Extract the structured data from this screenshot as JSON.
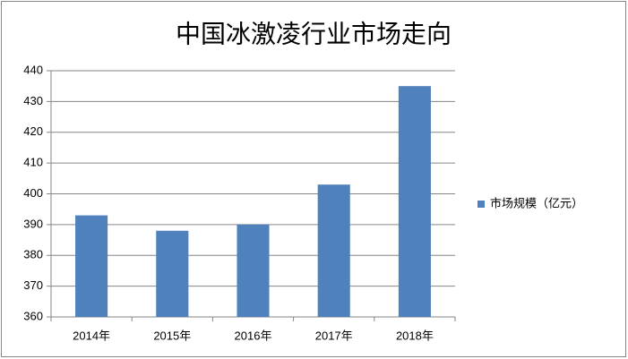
{
  "chart_data": {
    "type": "bar",
    "title": "中国冰激凌行业市场走向",
    "categories": [
      "2014年",
      "2015年",
      "2016年",
      "2017年",
      "2018年"
    ],
    "series": [
      {
        "name": "市场规模（亿元）",
        "color": "#4f81bd",
        "values": [
          393,
          388,
          390,
          403,
          435
        ]
      }
    ],
    "ylim": [
      360,
      440
    ],
    "yticks": [
      360,
      370,
      380,
      390,
      400,
      410,
      420,
      430,
      440
    ],
    "grid": true,
    "legend": "right"
  }
}
